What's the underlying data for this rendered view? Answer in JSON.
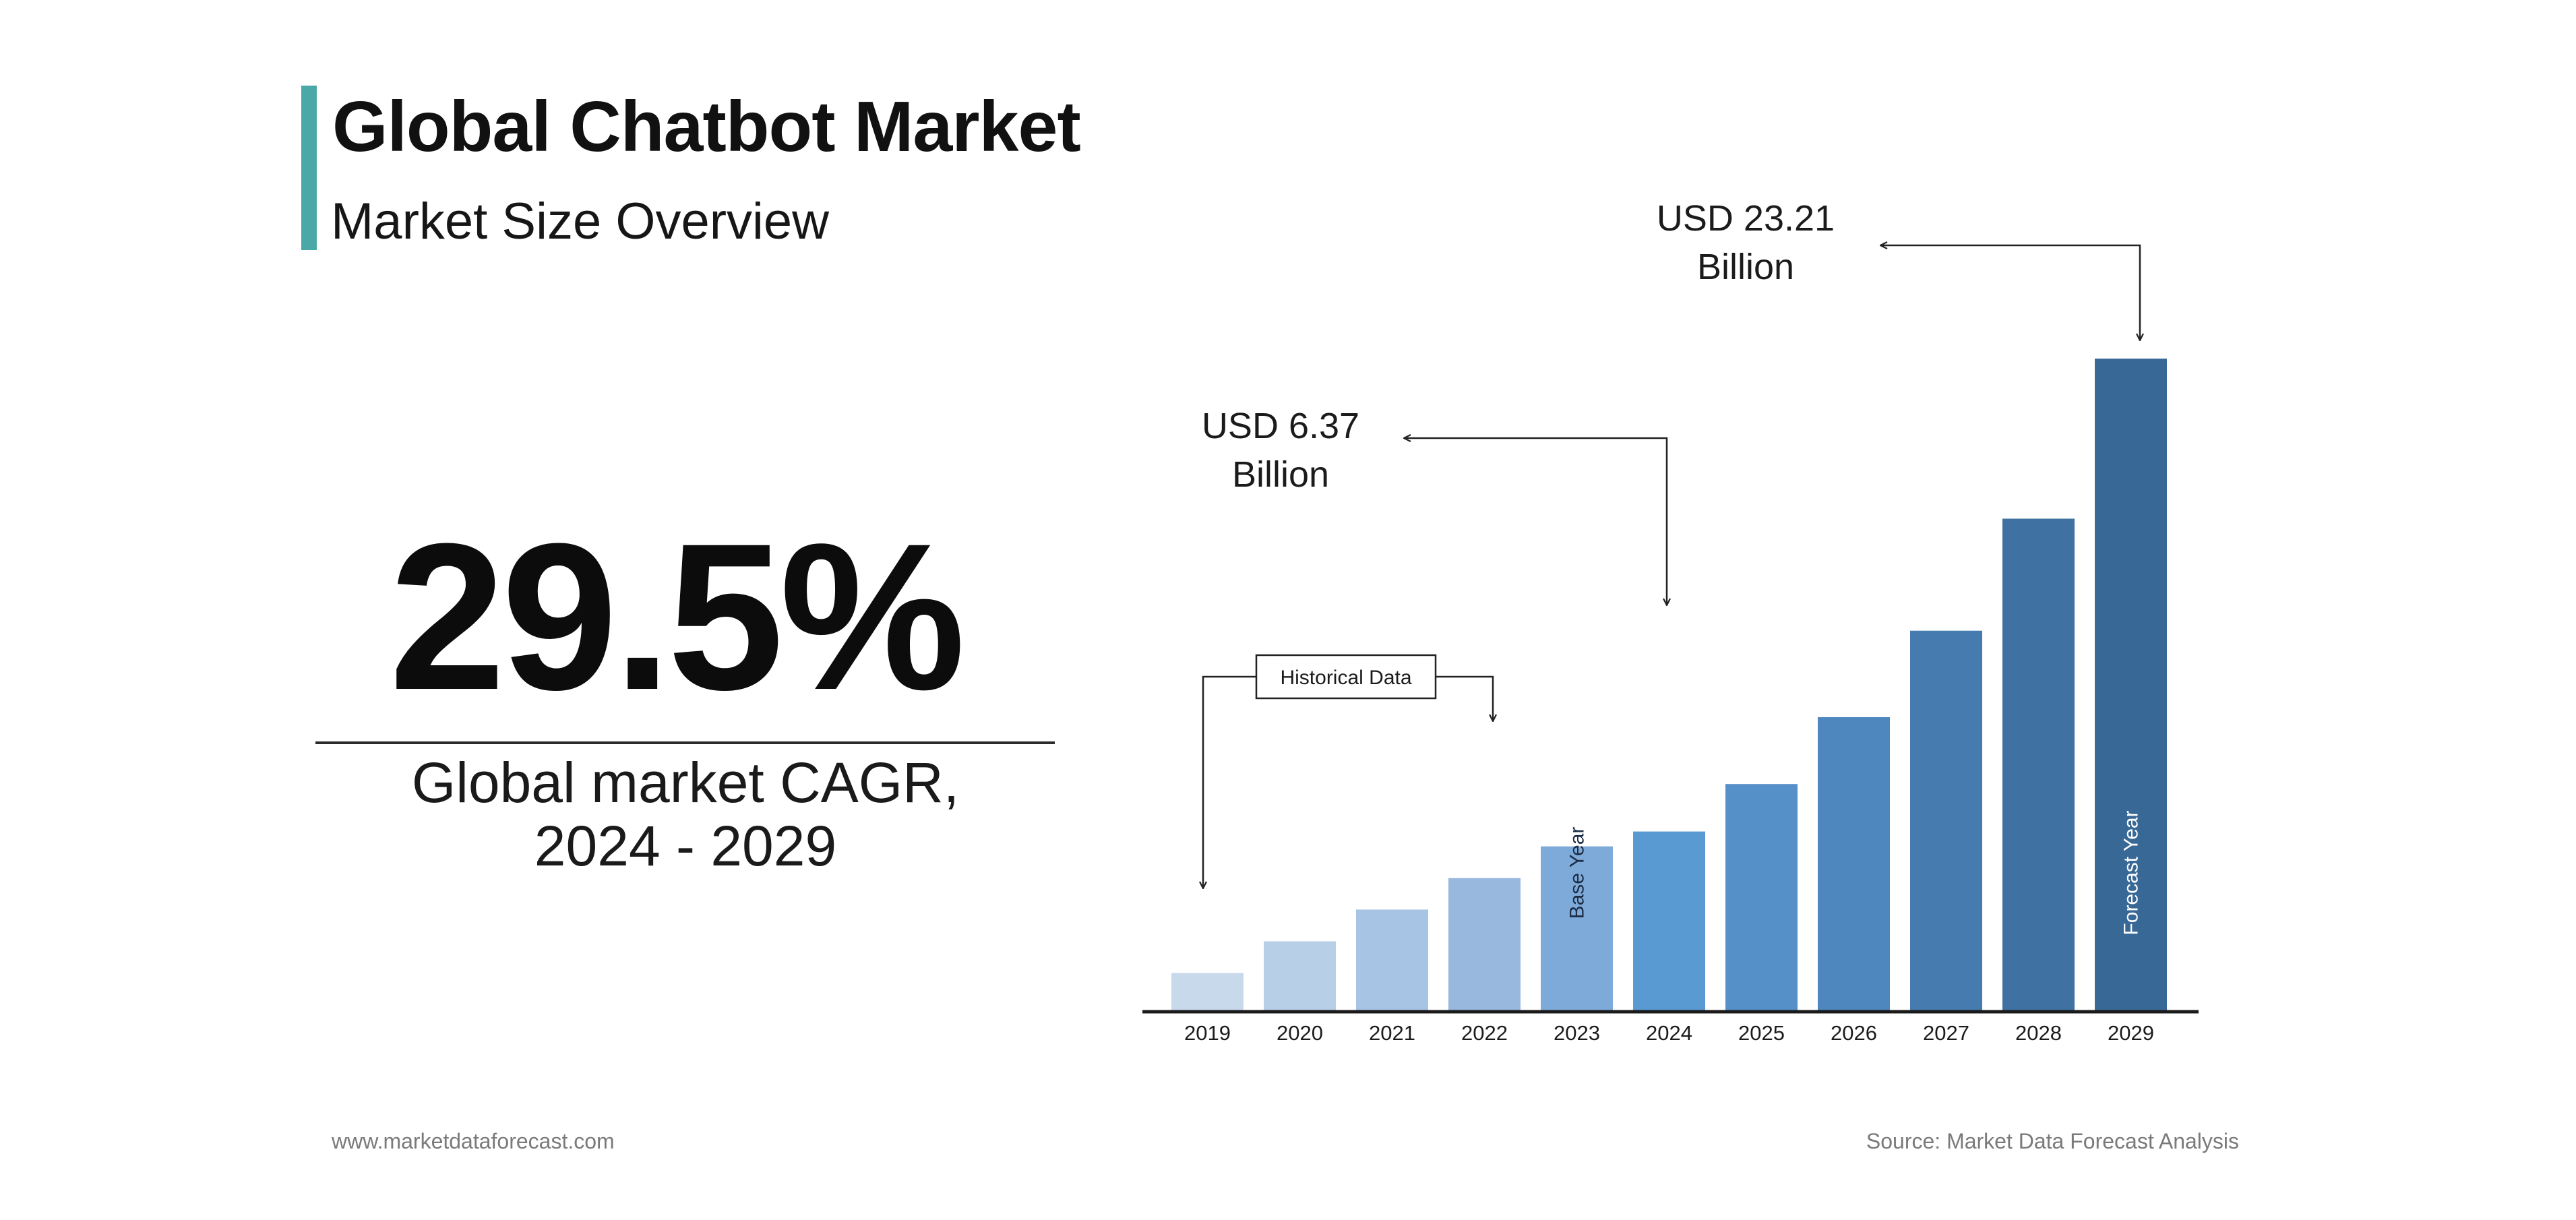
{
  "header": {
    "title": "Global Chatbot Market",
    "subtitle": "Market Size Overview"
  },
  "cagr": {
    "value": "29.5%",
    "label_line1": "Global market CAGR,",
    "label_line2": "2024 - 2029"
  },
  "callouts": {
    "value_2024_line1": "USD 6.37",
    "value_2024_line2": "Billion",
    "value_2029_line1": "USD 23.21",
    "value_2029_line2": "Billion",
    "historical": "Historical Data",
    "base_year": "Base Year",
    "forecast_year": "Forecast Year"
  },
  "footer": {
    "website": "www.marketdataforecast.com",
    "source": "Source: Market Data Forecast Analysis"
  },
  "colors": {
    "accent": "#4aa9a7",
    "axis": "#1a1a1a",
    "bar_colors": [
      "#c9d9ec",
      "#b8cfe8",
      "#a8c4e4",
      "#98b8de",
      "#7eaad9",
      "#5a9ad3",
      "#5590c9",
      "#4e86be",
      "#467bb0",
      "#3f72a2",
      "#386896"
    ]
  },
  "chart_data": {
    "type": "bar",
    "categories": [
      "2019",
      "2020",
      "2021",
      "2022",
      "2023",
      "2024",
      "2025",
      "2026",
      "2027",
      "2028",
      "2029"
    ],
    "series": [
      {
        "values": [
          1.33,
          2.46,
          3.59,
          4.71,
          5.84,
          6.37,
          8.06,
          10.44,
          13.52,
          17.51,
          23.21
        ]
      }
    ],
    "ylim": [
      0,
      24
    ],
    "grid": false,
    "legend": "none",
    "xlabel": "",
    "ylabel": "",
    "annotations": [
      {
        "category": "2024",
        "text": "USD 6.37 Billion"
      },
      {
        "category": "2029",
        "text": "USD 23.21 Billion"
      },
      {
        "category": "2023",
        "text": "Base Year"
      },
      {
        "category": "2029",
        "text": "Forecast Year"
      },
      {
        "range": [
          "2019",
          "2022"
        ],
        "text": "Historical Data"
      }
    ]
  }
}
